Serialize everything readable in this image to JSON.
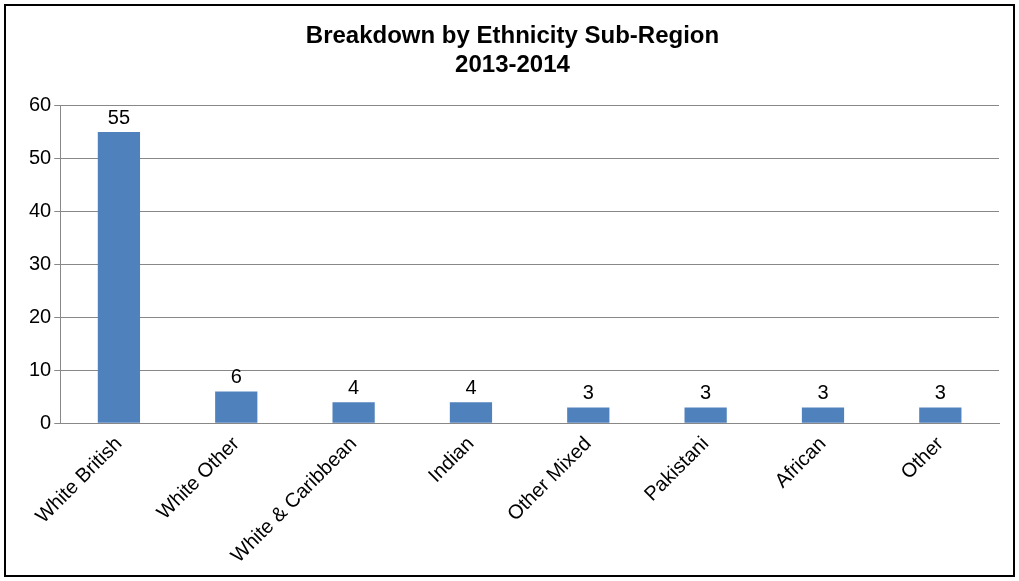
{
  "chart_data": {
    "type": "bar",
    "title": "Breakdown by Ethnicity Sub-Region\n2013-2014",
    "categories": [
      "White British",
      "White Other",
      "White & Caribbean",
      "Indian",
      "Other Mixed",
      "Pakistani",
      "African",
      "Other"
    ],
    "values": [
      55,
      6,
      4,
      4,
      3,
      3,
      3,
      3
    ],
    "color": "#4f81bd",
    "ylim": [
      0,
      60
    ],
    "yticks": [
      0,
      10,
      20,
      30,
      40,
      50,
      60
    ],
    "grid": "y",
    "data_labels": true
  }
}
